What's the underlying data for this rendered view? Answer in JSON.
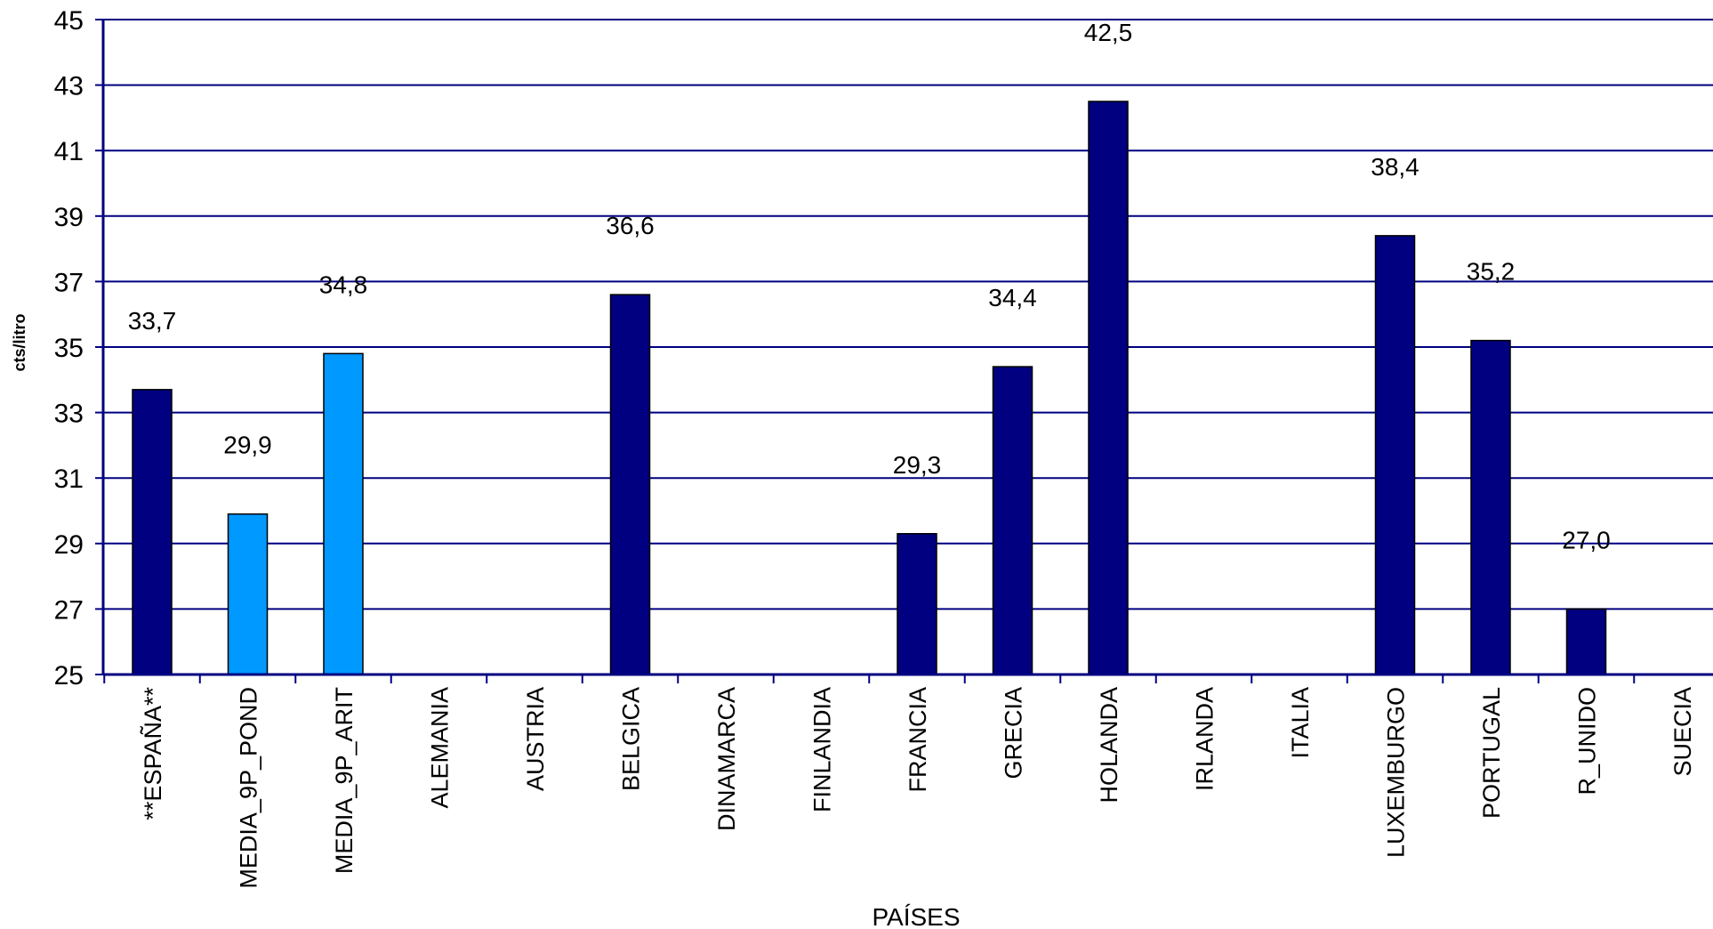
{
  "chart_data": {
    "type": "bar",
    "xlabel": "PAÍSES",
    "ylabel": "cts/litro",
    "ylim": [
      25,
      45
    ],
    "yticks": [
      25,
      27,
      29,
      31,
      33,
      35,
      37,
      39,
      41,
      43,
      45
    ],
    "grid": true,
    "legend": "none",
    "categories": [
      "**ESPAÑA**",
      "MEDIA_9P_POND",
      "MEDIA_9P_ARIT",
      "ALEMANIA",
      "AUSTRIA",
      "BELGICA",
      "DINAMARCA",
      "FINLANDIA",
      "FRANCIA",
      "GRECIA",
      "HOLANDA",
      "IRLANDA",
      "ITALIA",
      "LUXEMBURGO",
      "PORTUGAL",
      "R_UNIDO",
      "SUECIA"
    ],
    "values": [
      33.7,
      29.9,
      34.8,
      null,
      null,
      36.6,
      null,
      null,
      29.3,
      34.4,
      42.5,
      null,
      null,
      38.4,
      35.2,
      27.0,
      null
    ],
    "value_labels": [
      "33,7",
      "29,9",
      "34,8",
      "",
      "",
      "36,6",
      "",
      "",
      "29,3",
      "34,4",
      "42,5",
      "",
      "",
      "38,4",
      "35,2",
      "27,0",
      ""
    ],
    "colors": {
      "country_bar": "#000080",
      "average_bar": "#0099ff",
      "axis": "#000080",
      "grid": "#000080"
    },
    "bar_color_keys": [
      "country_bar",
      "average_bar",
      "average_bar",
      "country_bar",
      "country_bar",
      "country_bar",
      "country_bar",
      "country_bar",
      "country_bar",
      "country_bar",
      "country_bar",
      "country_bar",
      "country_bar",
      "country_bar",
      "country_bar",
      "country_bar",
      "country_bar"
    ]
  }
}
